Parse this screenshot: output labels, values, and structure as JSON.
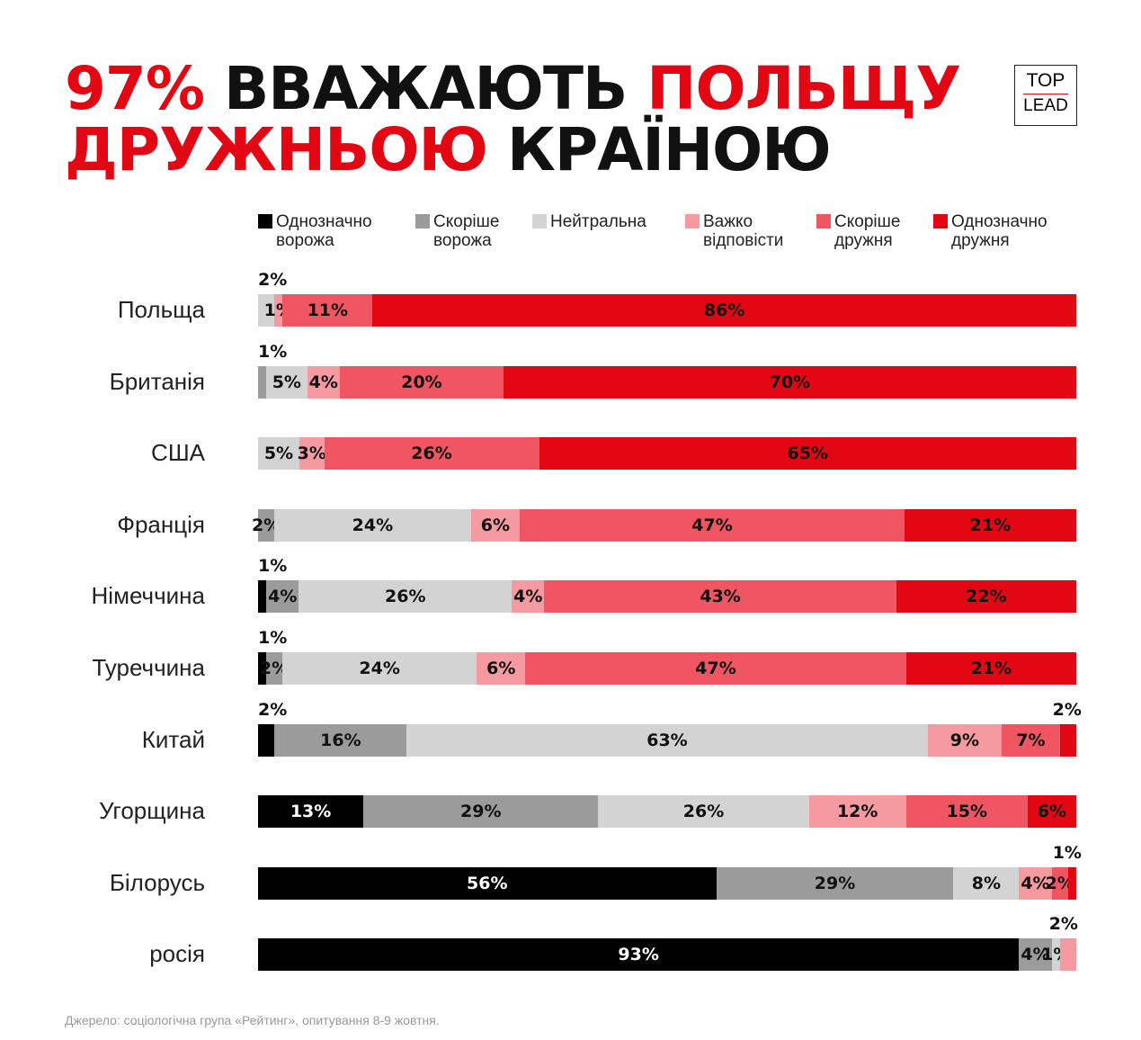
{
  "title": {
    "line1": [
      {
        "text": "97% ",
        "color": "red"
      },
      {
        "text": "ВВАЖАЮТЬ ",
        "color": "black"
      },
      {
        "text": "ПОЛЬЩУ",
        "color": "red"
      }
    ],
    "line2": [
      {
        "text": "ДРУЖНЬОЮ ",
        "color": "red"
      },
      {
        "text": "КРАЇНОЮ",
        "color": "black"
      }
    ]
  },
  "logo": {
    "top": "TOP",
    "bottom": "LEAD"
  },
  "source": "Джерело: соціологічна група «Рейтинг», опитування 8-9 жовтня.",
  "chart_data": {
    "type": "bar",
    "orientation": "horizontal-stacked-100",
    "legend_placement": "top",
    "series": [
      {
        "name": "Однозначно ворожа",
        "line1": "Однозначно",
        "line2": "ворожа",
        "color": "#000000"
      },
      {
        "name": "Скоріше ворожа",
        "line1": "Скоріше",
        "line2": "ворожа",
        "color": "#9b9b9b"
      },
      {
        "name": "Нейтральна",
        "line1": "Нейтральна",
        "line2": "",
        "color": "#d3d3d3"
      },
      {
        "name": "Важко відповісти",
        "line1": "Важко",
        "line2": "відповісти",
        "color": "#f59aa1"
      },
      {
        "name": "Скоріше дружня",
        "line1": "Скоріше",
        "line2": "дружня",
        "color": "#ef5662"
      },
      {
        "name": "Однозначно дружня",
        "line1": "Однозначно",
        "line2": "дружня",
        "color": "#e30613"
      }
    ],
    "categories": [
      "Польща",
      "Британія",
      "США",
      "Франція",
      "Німеччина",
      "Туреччина",
      "Китай",
      "Угорщина",
      "Білорусь",
      "росія"
    ],
    "values": [
      [
        0,
        0,
        2,
        1,
        11,
        86
      ],
      [
        0,
        1,
        5,
        4,
        20,
        70
      ],
      [
        0,
        0,
        5,
        3,
        26,
        65
      ],
      [
        0,
        2,
        24,
        6,
        47,
        21
      ],
      [
        1,
        4,
        26,
        4,
        43,
        22
      ],
      [
        1,
        2,
        24,
        6,
        47,
        21
      ],
      [
        2,
        16,
        63,
        9,
        7,
        2
      ],
      [
        13,
        29,
        26,
        12,
        15,
        6
      ],
      [
        56,
        29,
        8,
        4,
        2,
        1
      ],
      [
        93,
        4,
        1,
        2,
        0,
        0
      ]
    ],
    "label_above": [
      [
        2
      ],
      [
        1
      ],
      [],
      [],
      [
        0
      ],
      [
        0
      ],
      [
        0,
        5
      ],
      [],
      [
        5
      ],
      [
        3
      ]
    ]
  }
}
